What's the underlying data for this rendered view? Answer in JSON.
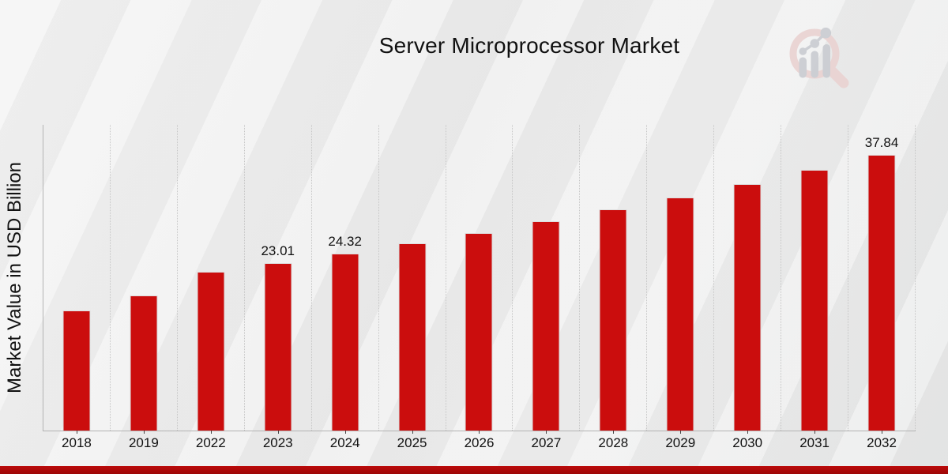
{
  "title": "Server Microprocessor Market",
  "y_axis_label": "Market Value in USD Billion",
  "chart_data": {
    "type": "bar",
    "title": "Server Microprocessor Market",
    "xlabel": "",
    "ylabel": "Market Value in USD Billion",
    "categories": [
      "2018",
      "2019",
      "2022",
      "2023",
      "2024",
      "2025",
      "2026",
      "2027",
      "2028",
      "2029",
      "2030",
      "2031",
      "2032"
    ],
    "values": [
      16.45,
      18.55,
      21.85,
      23.01,
      24.32,
      25.7,
      27.16,
      28.71,
      30.34,
      32.06,
      33.88,
      35.81,
      37.84
    ],
    "data_labels": [
      "",
      "",
      "",
      "23.01",
      "24.32",
      "",
      "",
      "",
      "",
      "",
      "",
      "",
      "37.84"
    ],
    "ylim": [
      0,
      42
    ],
    "y_tick_labels_shown": false,
    "grid": "vertical-dotted",
    "legend": "none",
    "bar_color": "#cb0d0d"
  },
  "colors": {
    "bar": "#cb0d0d",
    "footer_strip": "#bb0b0b",
    "gridline": "#c6c6c6",
    "axis_line": "#b3b3b3",
    "text": "#111111",
    "logo_ring": "#ead2d1",
    "logo_glyph": "#c9ccd1"
  },
  "footer": {
    "type": "accent-strip"
  },
  "logo_icon": "magnifier-bar-chart-watermark-logo"
}
